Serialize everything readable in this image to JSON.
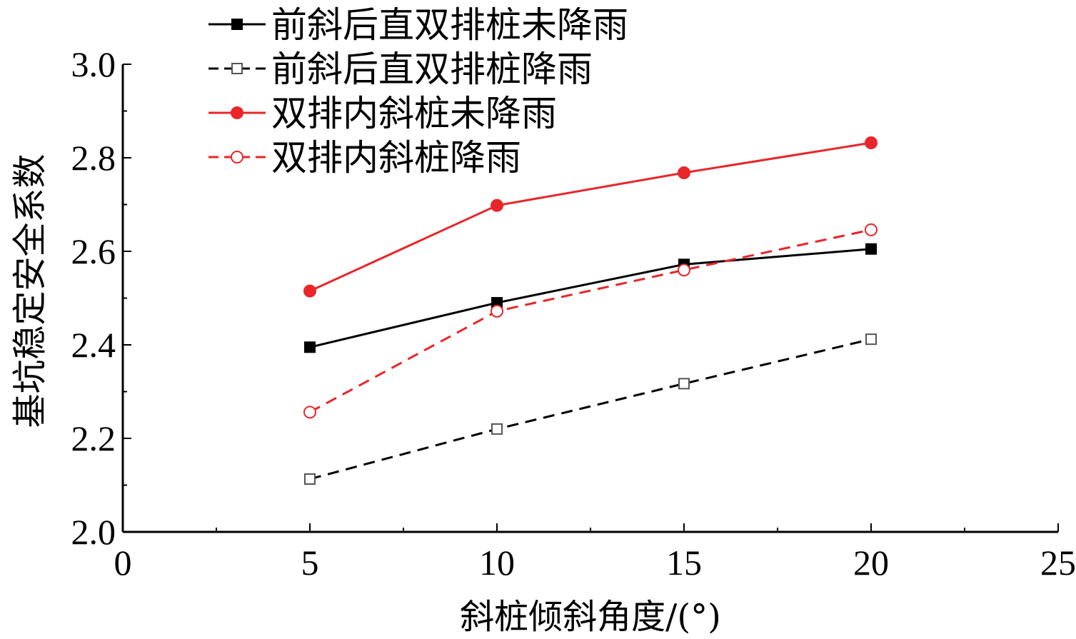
{
  "chart_data": {
    "type": "line",
    "xlabel": "斜桩倾斜角度/(°)",
    "ylabel": "基坑稳定安全系数",
    "xlim": [
      0,
      25
    ],
    "ylim": [
      2.0,
      3.0
    ],
    "x_ticks": [
      0,
      5,
      10,
      15,
      20,
      25
    ],
    "y_ticks": [
      2.0,
      2.2,
      2.4,
      2.6,
      2.8,
      3.0
    ],
    "x_tick_labels": [
      "0",
      "5",
      "10",
      "15",
      "20",
      "25"
    ],
    "y_tick_labels": [
      "2.0",
      "2.2",
      "2.4",
      "2.6",
      "2.8",
      "3.0"
    ],
    "grid": false,
    "legend_position": "top-left",
    "x": [
      5,
      10,
      15,
      20
    ],
    "series": [
      {
        "name": "前斜后直双排桩未降雨",
        "values": [
          2.395,
          2.49,
          2.572,
          2.605
        ],
        "color": "#000000",
        "dash": "solid",
        "marker": "square-filled"
      },
      {
        "name": "前斜后直双排桩降雨",
        "values": [
          2.113,
          2.22,
          2.317,
          2.412
        ],
        "color": "#000000",
        "dash": "dashed",
        "marker": "square-open"
      },
      {
        "name": "双排内斜桩未降雨",
        "values": [
          2.515,
          2.698,
          2.768,
          2.832
        ],
        "color": "#e8262a",
        "dash": "solid",
        "marker": "circle-filled"
      },
      {
        "name": "双排内斜桩降雨",
        "values": [
          2.256,
          2.472,
          2.56,
          2.646
        ],
        "color": "#e8262a",
        "dash": "dashed",
        "marker": "circle-open"
      }
    ]
  }
}
